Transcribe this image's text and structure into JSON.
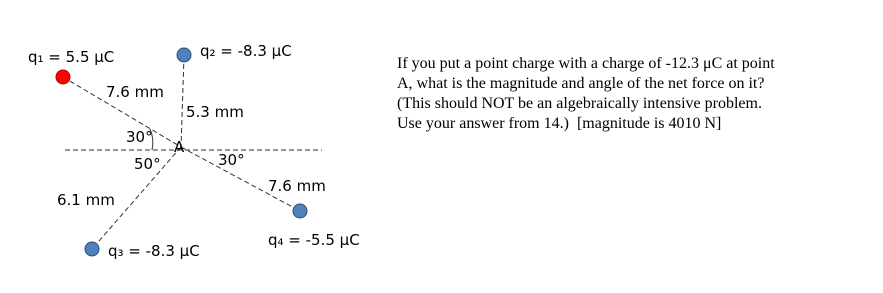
{
  "diagram": {
    "charges": [
      {
        "label": "q₁ = 5.5 μC"
      },
      {
        "label": "q₂ = -8.3 μC"
      },
      {
        "label": "q₃ = -8.3 μC"
      },
      {
        "label": "q₄ = -5.5 μC"
      }
    ],
    "point": "A",
    "distances": [
      "7.6 mm",
      "5.3 mm",
      "6.1 mm",
      "7.6 mm"
    ],
    "angles": [
      "30°",
      "50°",
      "30°"
    ]
  },
  "question": {
    "lines": [
      "If you put a point charge with a charge of -12.3 μC at point",
      "A, what is the magnitude and angle of the net force on it?",
      "(This should NOT be an algebraically intensive problem.",
      "Use your answer from 14.)  [magnitude is 4010 N]"
    ]
  }
}
